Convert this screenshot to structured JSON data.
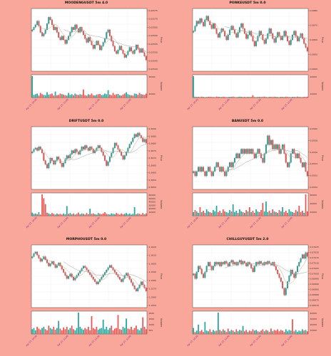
{
  "chart_data": [
    {
      "type": "candlestick",
      "title": "MOODENGUSDT 5m 4.0",
      "ylabel": "Price",
      "vol_label": "Volume",
      "ylim": [
        0.02535,
        0.02585
      ],
      "yticks": [
        "0.02575",
        "0.02570",
        "0.02565",
        "0.02560",
        "0.02555",
        "0.02550",
        "0.02545",
        "0.02540"
      ],
      "vol_ticks": [
        "3000k",
        "2000k"
      ],
      "xticks": [
        "Apr 27, 10:30",
        "Apr 27, 11:00",
        "Apr 27, 11:30",
        "Apr 27, 12:00"
      ],
      "closes": [
        0.02568,
        0.0257,
        0.02572,
        0.02575,
        0.02571,
        0.02566,
        0.02563,
        0.02565,
        0.02568,
        0.02573,
        0.02578,
        0.02576,
        0.02572,
        0.02568,
        0.0257,
        0.02566,
        0.02562,
        0.0256,
        0.02563,
        0.0256,
        0.02557,
        0.0256,
        0.02563,
        0.02566,
        0.0257,
        0.02568,
        0.02572,
        0.02569,
        0.02566,
        0.0257,
        0.02567,
        0.02564,
        0.02561,
        0.02558,
        0.02562,
        0.02559,
        0.02556,
        0.02553,
        0.02556,
        0.02559,
        0.02556,
        0.02552,
        0.02555,
        0.02558,
        0.02561,
        0.02566,
        0.02568,
        0.02563,
        0.02559,
        0.02555,
        0.02551,
        0.02549,
        0.02552,
        0.02555,
        0.02552,
        0.02549,
        0.02546,
        0.02548,
        0.02551,
        0.02554,
        0.02551,
        0.02549,
        0.02552,
        0.02556,
        0.02553,
        0.0255,
        0.02553,
        0.0255,
        0.02547,
        0.02544
      ],
      "volumes": [
        3200,
        400,
        500,
        600,
        300,
        700,
        500,
        400,
        350,
        800,
        450,
        500,
        600,
        300,
        900,
        350,
        400,
        600,
        500,
        450,
        350,
        300,
        700,
        400,
        500,
        350,
        600,
        450,
        380,
        500,
        420,
        1200,
        350,
        300,
        500,
        400,
        600,
        350,
        300,
        450,
        500,
        550,
        380,
        400,
        600,
        500,
        1100,
        450,
        350,
        700,
        400,
        500,
        550,
        350,
        300,
        450,
        600,
        800,
        500,
        400,
        350,
        300,
        600,
        550,
        400,
        700,
        500,
        450,
        400,
        600
      ]
    },
    {
      "type": "candlestick",
      "title": "PONKEUSDT 5m 0.0",
      "ylabel": "Price",
      "vol_label": "Volume",
      "ylim": [
        0.0832,
        0.0882
      ],
      "yticks": [
        "0.0880",
        "0.0870",
        "0.0860",
        "0.0850",
        "0.0840"
      ],
      "vol_ticks": [
        "20000",
        "10000"
      ],
      "xticks": [
        "Apr 27, 10:30",
        "Apr 27, 11:00",
        "Apr 27, 11:30",
        "Apr 27, 12:00"
      ],
      "closes": [
        0.0864,
        0.0868,
        0.0872,
        0.087,
        0.0874,
        0.0871,
        0.0868,
        0.0873,
        0.0876,
        0.0872,
        0.0869,
        0.0866,
        0.087,
        0.0866,
        0.0862,
        0.0859,
        0.0863,
        0.0866,
        0.0864,
        0.086,
        0.0857,
        0.0861,
        0.0865,
        0.0868,
        0.0865,
        0.0862,
        0.0859,
        0.0863,
        0.0867,
        0.087,
        0.0866,
        0.0862,
        0.0858,
        0.0861,
        0.0864,
        0.086,
        0.0856,
        0.0852,
        0.0856,
        0.086,
        0.0864,
        0.0861,
        0.0857,
        0.0854,
        0.0858,
        0.0862,
        0.0866,
        0.0862,
        0.0858,
        0.0855,
        0.0859,
        0.0863,
        0.086,
        0.0857,
        0.086,
        0.0864,
        0.086,
        0.0856,
        0.0853,
        0.0857,
        0.0861,
        0.0864,
        0.086,
        0.0856,
        0.0859,
        0.0862,
        0.0858,
        0.0854,
        0.0851,
        0.0848
      ],
      "volumes": [
        20000,
        800,
        600,
        700,
        500,
        900,
        600,
        400,
        500,
        700,
        800,
        600,
        500,
        400,
        900,
        700,
        600,
        500,
        800,
        600,
        400,
        500,
        600,
        700,
        900,
        500,
        400,
        600,
        800,
        700,
        500,
        600,
        400,
        700,
        500,
        600,
        2200,
        500,
        400,
        600,
        700,
        500,
        600,
        900,
        500,
        400,
        700,
        600,
        500,
        800,
        600,
        500,
        400,
        700,
        600,
        500,
        800,
        600,
        500,
        400,
        700,
        600,
        500,
        900,
        600,
        500,
        400,
        700,
        600,
        800
      ]
    },
    {
      "type": "candlestick",
      "title": "DRIFTUSDT 5m 0.0",
      "ylabel": "Price",
      "vol_label": "Volume",
      "ylim": [
        0.3645,
        0.3695
      ],
      "yticks": [
        "0.3690",
        "0.3685",
        "0.3680",
        "0.3675",
        "0.3670",
        "0.3665",
        "0.3660",
        "0.3655",
        "0.3650"
      ],
      "vol_ticks": [
        "60000",
        "50000",
        "40000",
        "30000",
        "20000",
        "10000"
      ],
      "xticks": [
        "Apr 27, 10:30",
        "Apr 27, 11:00",
        "Apr 27, 11:30",
        "Apr 27, 12:00"
      ],
      "closes": [
        0.3675,
        0.3677,
        0.3678,
        0.3676,
        0.3679,
        0.3677,
        0.3674,
        0.3668,
        0.3665,
        0.3662,
        0.3666,
        0.367,
        0.3668,
        0.3665,
        0.3668,
        0.3671,
        0.3669,
        0.3666,
        0.3663,
        0.3666,
        0.3669,
        0.3672,
        0.367,
        0.3673,
        0.3676,
        0.3674,
        0.3677,
        0.3675,
        0.3673,
        0.3676,
        0.3679,
        0.3677,
        0.368,
        0.3678,
        0.3676,
        0.3679,
        0.3677,
        0.3674,
        0.3676,
        0.3678,
        0.368,
        0.3678,
        0.3675,
        0.3672,
        0.3668,
        0.3664,
        0.3667,
        0.3671,
        0.3674,
        0.3678,
        0.3682,
        0.368,
        0.3677,
        0.3675,
        0.3672,
        0.3669,
        0.3672,
        0.3675,
        0.3678,
        0.3681,
        0.3683,
        0.3686,
        0.3689,
        0.3687,
        0.369,
        0.3688,
        0.3686,
        0.3683,
        0.3685,
        0.3682
      ],
      "volumes": [
        8000,
        5000,
        6000,
        4000,
        9000,
        3000,
        55000,
        45000,
        30000,
        8000,
        6000,
        4000,
        7000,
        5000,
        3000,
        6000,
        4000,
        5000,
        3000,
        6000,
        4000,
        25000,
        5000,
        7000,
        4000,
        6000,
        3000,
        5000,
        8000,
        4000,
        6000,
        5000,
        3000,
        7000,
        4000,
        18000,
        5000,
        6000,
        4000,
        3000,
        7000,
        5000,
        4000,
        6000,
        9000,
        5000,
        4000,
        3000,
        6000,
        5000,
        4000,
        7000,
        5000,
        3000,
        6000,
        4000,
        5000,
        7000,
        4000,
        6000,
        3000,
        5000,
        22000,
        4000,
        6000,
        5000,
        3000,
        7000,
        4000,
        6000
      ]
    },
    {
      "type": "candlestick",
      "title": "BANUSDT 5m 0.0",
      "ylabel": "Price",
      "vol_label": "Volume",
      "ylim": [
        0.0548,
        0.0562
      ],
      "yticks": [
        "0.0560",
        "0.0558",
        "0.0556",
        "0.0554",
        "0.0552",
        "0.0550"
      ],
      "vol_ticks": [
        "60000",
        "40000",
        "20000"
      ],
      "xticks": [
        "Apr 27, 10:30",
        "Apr 27, 11:00",
        "Apr 27, 11:30",
        "Apr 27, 12:00"
      ],
      "closes": [
        0.0552,
        0.0551,
        0.0552,
        0.0553,
        0.0552,
        0.0553,
        0.0552,
        0.0551,
        0.0552,
        0.0553,
        0.0552,
        0.0551,
        0.0552,
        0.0553,
        0.0554,
        0.0553,
        0.0552,
        0.0553,
        0.0552,
        0.0551,
        0.0552,
        0.0553,
        0.0554,
        0.0553,
        0.0554,
        0.0555,
        0.0556,
        0.0555,
        0.0556,
        0.0557,
        0.0556,
        0.0557,
        0.0556,
        0.0557,
        0.0556,
        0.0557,
        0.0556,
        0.0555,
        0.0556,
        0.0557,
        0.0556,
        0.0555,
        0.0554,
        0.0556,
        0.0558,
        0.056,
        0.0558,
        0.0559,
        0.0557,
        0.0558,
        0.0557,
        0.0558,
        0.0556,
        0.0557,
        0.0558,
        0.0556,
        0.0554,
        0.0553,
        0.0554,
        0.0556,
        0.0557,
        0.0556,
        0.0555,
        0.0556,
        0.0555,
        0.0554,
        0.0553,
        0.0554,
        0.0552,
        0.0551
      ],
      "volumes": [
        5000,
        8000,
        6000,
        4000,
        12000,
        5000,
        7000,
        4000,
        9000,
        6000,
        5000,
        4000,
        8000,
        6000,
        14000,
        5000,
        7000,
        4000,
        9000,
        6000,
        5000,
        4000,
        8000,
        6000,
        16000,
        5000,
        7000,
        4000,
        9000,
        6000,
        5000,
        4000,
        8000,
        6000,
        12000,
        5000,
        7000,
        4000,
        9000,
        6000,
        5000,
        8000,
        18000,
        6000,
        20000,
        5000,
        7000,
        4000,
        9000,
        6000,
        5000,
        4000,
        8000,
        6000,
        12000,
        5000,
        7000,
        4000,
        9000,
        6000,
        5000,
        4000,
        8000,
        6000,
        14000,
        5000,
        7000,
        4000,
        30000,
        6000
      ]
    },
    {
      "type": "candlestick",
      "title": "MORPHOUSDT 5m 0.0",
      "ylabel": "Price",
      "vol_label": "Volume",
      "ylim": [
        1.1545,
        1.1625
      ],
      "yticks": [
        "1.1620",
        "1.1610",
        "1.1600",
        "1.1590",
        "1.1580",
        "1.1570",
        "1.1560",
        "1.1550"
      ],
      "vol_ticks": [
        "2000",
        "1500",
        "1000",
        "500"
      ],
      "xticks": [
        "Apr 27, 10:30",
        "Apr 27, 11:00",
        "Apr 27, 11:30",
        "Apr 27, 12:00"
      ],
      "closes": [
        1.161,
        1.1614,
        1.1616,
        1.1612,
        1.1608,
        1.1604,
        1.1607,
        1.161,
        1.1606,
        1.1602,
        1.1598,
        1.1601,
        1.1604,
        1.16,
        1.1596,
        1.1599,
        1.1602,
        1.1598,
        1.1594,
        1.159,
        1.1586,
        1.1582,
        1.1585,
        1.1588,
        1.1584,
        1.158,
        1.1583,
        1.1586,
        1.1589,
        1.1592,
        1.1595,
        1.1598,
        1.1596,
        1.1593,
        1.159,
        1.1587,
        1.1584,
        1.1581,
        1.1578,
        1.1575,
        1.1578,
        1.1581,
        1.1584,
        1.1587,
        1.159,
        1.1593,
        1.1596,
        1.1599,
        1.1596,
        1.1593,
        1.159,
        1.1587,
        1.1584,
        1.1581,
        1.1578,
        1.1582,
        1.1586,
        1.1589,
        1.1585,
        1.1581,
        1.1577,
        1.1573,
        1.1569,
        1.1566,
        1.157,
        1.1574,
        1.1578,
        1.1574,
        1.157,
        1.1566
      ],
      "volumes": [
        400,
        500,
        300,
        600,
        450,
        350,
        500,
        600,
        400,
        300,
        700,
        500,
        400,
        600,
        350,
        500,
        1100,
        450,
        300,
        550,
        400,
        600,
        350,
        500,
        700,
        400,
        300,
        500,
        1800,
        600,
        450,
        350,
        500,
        400,
        600,
        300,
        1500,
        500,
        400,
        600,
        350,
        450,
        500,
        1200,
        400,
        600,
        350,
        500,
        700,
        300,
        450,
        500,
        1600,
        400,
        350,
        600,
        500,
        1300,
        450,
        400,
        600,
        350,
        500,
        700,
        400,
        300,
        500,
        1400,
        600,
        400
      ]
    },
    {
      "type": "candlestick",
      "title": "CHILLGUYUSDT 5m 2.0",
      "ylabel": "Price",
      "vol_label": "Volume",
      "ylim": [
        0.06965,
        0.0703
      ],
      "yticks": [
        "0.07025",
        "0.07020",
        "0.07015",
        "0.07010",
        "0.07005",
        "0.07000",
        "0.06995",
        "0.06990",
        "0.06985",
        "0.06980",
        "0.06975",
        "0.06970"
      ],
      "vol_ticks": [
        "40000",
        "30000",
        "20000",
        "10000"
      ],
      "xticks": [
        "Apr 27, 10:30",
        "Apr 27, 11:00",
        "Apr 27, 11:30",
        "Apr 27, 12:00"
      ],
      "closes": [
        0.07,
        0.06995,
        0.07002,
        0.07008,
        0.07005,
        0.07,
        0.06996,
        0.07002,
        0.07008,
        0.07012,
        0.07008,
        0.07004,
        0.07008,
        0.07012,
        0.0701,
        0.07012,
        0.07008,
        0.07012,
        0.0701,
        0.07013,
        0.07011,
        0.07008,
        0.07012,
        0.07014,
        0.0701,
        0.07012,
        0.07009,
        0.07012,
        0.07014,
        0.0701,
        0.07013,
        0.07011,
        0.07008,
        0.07012,
        0.0701,
        0.07006,
        0.07002,
        0.07008,
        0.07012,
        0.0701,
        0.07013,
        0.07011,
        0.07009,
        0.07012,
        0.0701,
        0.07013,
        0.07011,
        0.07009,
        0.07012,
        0.07008,
        0.07004,
        0.07,
        0.06996,
        0.06992,
        0.06985,
        0.06978,
        0.06985,
        0.06992,
        0.06998,
        0.07004,
        0.07,
        0.06996,
        0.07002,
        0.07008,
        0.07012,
        0.07016,
        0.0702,
        0.07016,
        0.07022,
        0.07018
      ],
      "volumes": [
        9000,
        3000,
        5000,
        14000,
        4000,
        6000,
        3000,
        18000,
        5000,
        4000,
        7000,
        3000,
        6000,
        4000,
        5000,
        32000,
        6000,
        4000,
        7000,
        5000,
        3000,
        8000,
        4000,
        6000,
        5000,
        3000,
        7000,
        4000,
        6000,
        5000,
        12000,
        4000,
        6000,
        3000,
        5000,
        4000,
        7000,
        5000,
        6000,
        4000,
        3000,
        5000,
        7000,
        4000,
        6000,
        5000,
        3000,
        8000,
        4000,
        6000,
        5000,
        7000,
        4000,
        6000,
        5000,
        3000,
        7000,
        4000,
        6000,
        5000,
        22000,
        4000,
        6000,
        3000,
        5000,
        4000,
        7000,
        5000,
        6000,
        4000
      ]
    }
  ],
  "colors": {
    "background": "#f8a79a",
    "up": "#26a69a",
    "down": "#ef5350",
    "ma_fast": "#c8a882",
    "ma_slow": "#9e9e9e",
    "grid": "#e6e6e6",
    "tick_date": "#8b1a8b"
  }
}
